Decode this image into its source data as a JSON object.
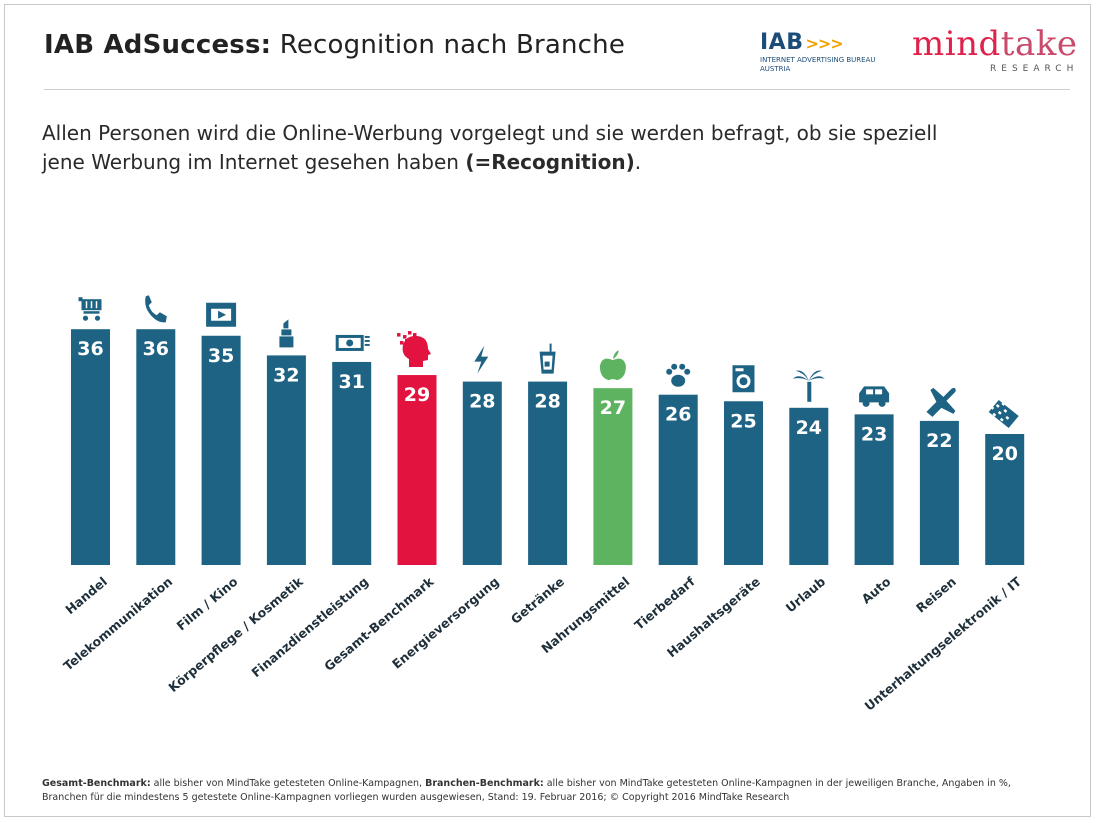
{
  "header": {
    "title_bold": "IAB AdSuccess:",
    "title_rest": "Recognition nach Branche"
  },
  "logos": {
    "iab_word": "IAB",
    "iab_arrows": ">>>",
    "iab_sub_line1": "INTERNET ADVERTISING BUREAU",
    "iab_sub_line2": "AUSTRIA",
    "mindtake_word_a": "mind",
    "mindtake_word_b": "take",
    "mindtake_sub": "RESEARCH"
  },
  "intro": {
    "line1": "Allen Personen wird die Online-Werbung vorgelegt und sie werden befragt, ob sie speziell",
    "line2_plain": "jene Werbung im Internet gesehen haben ",
    "line2_bold": "(=Recognition)",
    "line2_end": "."
  },
  "footnote": {
    "part1_bold": "Gesamt-Benchmark:",
    "part1": " alle bisher von MindTake getesteten Online-Kampagnen, ",
    "part2_bold": "Branchen-Benchmark:",
    "part2": " alle bisher von MindTake getesteten Online-Kampagnen in der jeweiligen Branche, Angaben in %,",
    "line2": "Branchen für die mindestens 5 getestete Online-Kampagnen vorliegen wurden ausgewiesen, Stand: 19. Februar 2016; © Copyright 2016 MindTake Research"
  },
  "colors": {
    "bar_default": "#1f6384",
    "bar_benchmark": "#e2133f",
    "bar_highlight": "#5db35f",
    "label_default": "#1f2f3a"
  },
  "chart_data": {
    "type": "bar",
    "title": "IAB AdSuccess: Recognition nach Branche",
    "unit": "%",
    "categories": [
      "Handel",
      "Telekommunikation",
      "Film / Kino",
      "Körperpflege / Kosmetik",
      "Finanzdienstleistung",
      "Gesamt-Benchmark",
      "Energieversorgung",
      "Getränke",
      "Nahrungsmittel",
      "Tierbedarf",
      "Haushaltsgeräte",
      "Urlaub",
      "Auto",
      "Reisen",
      "Unterhaltungselektronik / IT"
    ],
    "values": [
      36,
      36,
      35,
      32,
      31,
      29,
      28,
      28,
      27,
      26,
      25,
      24,
      23,
      22,
      20
    ],
    "icons": [
      "cart-icon",
      "phone-icon",
      "film-icon",
      "lipstick-icon",
      "money-icon",
      "head-icon",
      "lightning-icon",
      "drink-icon",
      "apple-icon",
      "paw-icon",
      "washing-machine-icon",
      "palm-icon",
      "car-icon",
      "plane-icon",
      "keyboard-icon"
    ],
    "highlight": {
      "Gesamt-Benchmark": "benchmark",
      "Nahrungsmittel": "highlight"
    },
    "ylim": [
      0,
      36
    ],
    "grid": false,
    "legend": "none"
  }
}
